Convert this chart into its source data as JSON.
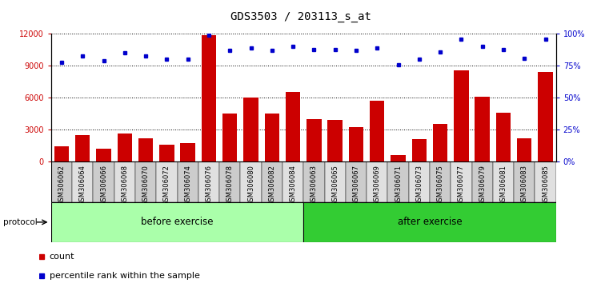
{
  "title": "GDS3503 / 203113_s_at",
  "categories": [
    "GSM306062",
    "GSM306064",
    "GSM306066",
    "GSM306068",
    "GSM306070",
    "GSM306072",
    "GSM306074",
    "GSM306076",
    "GSM306078",
    "GSM306080",
    "GSM306082",
    "GSM306084",
    "GSM306063",
    "GSM306065",
    "GSM306067",
    "GSM306069",
    "GSM306071",
    "GSM306073",
    "GSM306075",
    "GSM306077",
    "GSM306079",
    "GSM306081",
    "GSM306083",
    "GSM306085"
  ],
  "bar_values": [
    1400,
    2500,
    1200,
    2600,
    2200,
    1600,
    1700,
    11900,
    4500,
    6000,
    4500,
    6500,
    4000,
    3900,
    3200,
    5700,
    600,
    2100,
    3500,
    8600,
    6100,
    4600,
    2200,
    8400
  ],
  "dot_values": [
    78,
    83,
    79,
    85,
    83,
    80,
    80,
    99,
    87,
    89,
    87,
    90,
    88,
    88,
    87,
    89,
    76,
    80,
    86,
    96,
    90,
    88,
    81,
    96
  ],
  "before_count": 12,
  "after_count": 12,
  "before_label": "before exercise",
  "after_label": "after exercise",
  "protocol_label": "protocol",
  "bar_color": "#cc0000",
  "dot_color": "#0000cc",
  "before_bg": "#aaffaa",
  "after_bg": "#33cc33",
  "cell_color_even": "#cccccc",
  "cell_color_odd": "#e0e0e0",
  "yticks_left": [
    0,
    3000,
    6000,
    9000,
    12000
  ],
  "yticks_right": [
    0,
    25,
    50,
    75,
    100
  ],
  "ylim_left": [
    0,
    12000
  ],
  "ylim_right": [
    0,
    100
  ],
  "legend_count": "count",
  "legend_percentile": "percentile rank within the sample",
  "title_fontsize": 10,
  "tick_fontsize": 7,
  "label_fontsize": 8.5,
  "xtick_fontsize": 6,
  "legend_fontsize": 8
}
